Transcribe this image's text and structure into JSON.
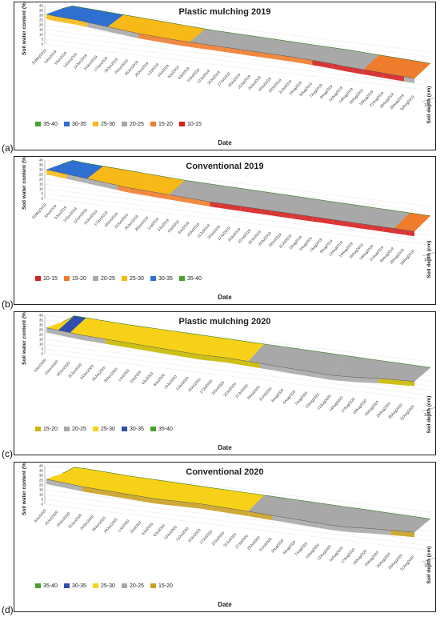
{
  "figure": {
    "labels": [
      "(a)",
      "(b)",
      "(c)",
      "(d)"
    ]
  },
  "chart_data": [
    {
      "type": "area",
      "title": "Plastic mulching 2019",
      "xlabel": "Date",
      "ylabel": "Soil water content (%)",
      "zlabel": "Soil depth (cm)",
      "z_ticks": [
        "10",
        "30"
      ],
      "ylim": [
        0,
        40
      ],
      "y_ticks": [
        "0",
        "5",
        "10",
        "15",
        "20",
        "25",
        "30",
        "35",
        "40"
      ],
      "x": [
        "31May2019",
        "3Jun2019",
        "5Jun2019",
        "10Jun2019",
        "12Jun2019",
        "14Jun2019",
        "17Jun2019",
        "19Jun2019",
        "24Jun2019",
        "26Jun2019",
        "28Jun2019",
        "1Jul2019",
        "3Jul2019",
        "5Jul2019",
        "8Jul2019",
        "10Jul2019",
        "12Jul2019",
        "15Jul2019",
        "17Jul2019",
        "19Jul2019",
        "22Jul2019",
        "24Jul2019",
        "26Jul2019",
        "29Jul2019",
        "31Jul2019",
        "2Aug2019",
        "5Aug2019",
        "7Aug2019",
        "9Aug2019",
        "12Aug2019",
        "14Aug2019",
        "16Aug2019",
        "19Aug2019",
        "21Aug2019",
        "26Aug2019",
        "28Aug2019",
        "30Aug2019"
      ],
      "series": [
        {
          "name": "10 cm",
          "values": [
            32,
            36,
            35.5,
            35,
            34.5,
            34,
            33.5,
            33,
            32.5,
            32,
            31.5,
            31,
            30.5,
            30,
            29.5,
            29,
            28.8,
            28.6,
            28.4,
            28.2,
            28,
            27.8,
            27.6,
            27.4,
            27.2,
            27,
            26.8,
            26.6,
            26.4,
            26,
            25.6,
            25.2,
            24.8,
            24.4,
            24,
            23.6,
            23
          ]
        },
        {
          "name": "30 cm",
          "values": [
            31,
            30,
            29.5,
            29,
            28,
            27,
            26,
            25,
            24,
            23,
            22.5,
            22,
            21.5,
            21,
            20.8,
            20.6,
            20.4,
            20.2,
            20,
            19.8,
            19.6,
            19.4,
            19.2,
            19,
            18.8,
            18.5,
            18,
            17.5,
            17,
            16,
            15.5,
            15,
            14.5,
            14,
            13.5,
            13,
            12.5
          ]
        }
      ],
      "legend": [
        "35-40",
        "30-35",
        "25-30",
        "20-25",
        "15-20",
        "10-15"
      ],
      "legend_colors": [
        "#4aa02c",
        "#2e6fd0",
        "#f7b917",
        "#a8a8a8",
        "#ee7c2c",
        "#d62020"
      ],
      "legend_position": "bottom"
    },
    {
      "type": "area",
      "title": "Conventional 2019",
      "xlabel": "Date",
      "ylabel": "Soil water content (%)",
      "zlabel": "Soil depth (cm)",
      "z_ticks": [
        "10",
        "30"
      ],
      "ylim": [
        0,
        40
      ],
      "y_ticks": [
        "0",
        "5",
        "10",
        "15",
        "20",
        "25",
        "30",
        "35",
        "40"
      ],
      "x": [
        "31May2019",
        "3Jun2019",
        "5Jun2019",
        "10Jun2019",
        "12Jun2019",
        "14Jun2019",
        "17Jun2019",
        "19Jun2019",
        "24Jun2019",
        "26Jun2019",
        "28Jun2019",
        "1Jul2019",
        "3Jul2019",
        "5Jul2019",
        "8Jul2019",
        "10Jul2019",
        "12Jul2019",
        "15Jul2019",
        "17Jul2019",
        "19Jul2019",
        "22Jul2019",
        "24Jul2019",
        "26Jul2019",
        "29Jul2019",
        "31Jul2019",
        "2Aug2019",
        "5Aug2019",
        "7Aug2019",
        "9Aug2019",
        "12Aug2019",
        "14Aug2019",
        "16Aug2019",
        "19Aug2019",
        "21Aug2019",
        "26Aug2019",
        "28Aug2019",
        "30Aug2019"
      ],
      "series": [
        {
          "name": "10 cm",
          "values": [
            31,
            36,
            35,
            34.5,
            34,
            33.5,
            33,
            32.5,
            32,
            31.5,
            31,
            30.5,
            30,
            29.8,
            29.6,
            29.4,
            29.2,
            29,
            28.8,
            28.6,
            28.4,
            28.2,
            28,
            27.8,
            27.6,
            27.4,
            27.2,
            27,
            26.8,
            26.6,
            26.4,
            26.2,
            26,
            25.8,
            25.6,
            25.4,
            25.2
          ]
        },
        {
          "name": "30 cm",
          "values": [
            30,
            29,
            28,
            27,
            26,
            25,
            24,
            23,
            22,
            21.5,
            21,
            20.5,
            20,
            19.5,
            19,
            18.5,
            18,
            17.8,
            17.6,
            17.4,
            17.2,
            17,
            16.8,
            16.6,
            16.4,
            16.2,
            16,
            15.8,
            15.6,
            15.4,
            15.2,
            15,
            14.8,
            14.6,
            14.4,
            14.2,
            14
          ]
        }
      ],
      "legend": [
        "10-15",
        "15-20",
        "20-25",
        "25-30",
        "30-35",
        "35-40"
      ],
      "legend_colors": [
        "#d62020",
        "#ee7c2c",
        "#a8a8a8",
        "#f7b917",
        "#2e6fd0",
        "#4aa02c"
      ],
      "legend_position": "bottom"
    },
    {
      "type": "area",
      "title": "Plastic mulching 2020",
      "xlabel": "Date",
      "ylabel": "Soil water content (%)",
      "zlabel": "Soil depth (cm)",
      "z_ticks": [
        "10",
        "30"
      ],
      "ylim": [
        0,
        40
      ],
      "y_ticks": [
        "0",
        "5",
        "10",
        "15",
        "20",
        "25",
        "30",
        "35",
        "40"
      ],
      "x": [
        "9Jun2020",
        "15Jun2020",
        "18Jun2020",
        "22Jun2020",
        "24Jun2020",
        "26Jun2020",
        "29Jun2020",
        "1Jul2020",
        "3Jul2020",
        "6Jul2020",
        "8Jul2020",
        "10Jul2020",
        "13Jul2020",
        "15Jul2020",
        "17Jul2020",
        "20Jul2020",
        "22Jul2020",
        "27Jul2020",
        "29Jul2020",
        "31Jul2020",
        "3Aug2020",
        "5Aug2020",
        "7Aug2020",
        "10Aug2020",
        "12Aug2020",
        "14Aug2020",
        "17Aug2020",
        "19Aug2020",
        "24Aug2020",
        "26Aug2020",
        "28Aug2020",
        "31Aug2020"
      ],
      "series": [
        {
          "name": "10 cm",
          "values": [
            28,
            36,
            35.5,
            35,
            34.5,
            34,
            33.8,
            33.6,
            33.4,
            33.2,
            33,
            32.8,
            32.6,
            32.4,
            32.2,
            32,
            31.8,
            31.6,
            31.4,
            31.2,
            31,
            30.8,
            30.6,
            30.4,
            30.2,
            30,
            29.8,
            29.6,
            29.4,
            29.2,
            29,
            28.8
          ]
        },
        {
          "name": "30 cm",
          "values": [
            27,
            26,
            25,
            24,
            23.5,
            23,
            22.5,
            22,
            21.5,
            21,
            20.5,
            20,
            19.5,
            19,
            19.2,
            19.4,
            19,
            18.5,
            18,
            17.5,
            17,
            16.5,
            16,
            15.5,
            15,
            15.5,
            16,
            17,
            18,
            18.5,
            19,
            19.5
          ]
        }
      ],
      "legend": [
        "15-20",
        "20-25",
        "25-30",
        "30-35",
        "35-40"
      ],
      "legend_colors": [
        "#c9b800",
        "#a8a8a8",
        "#f7d117",
        "#2e4fb0",
        "#4aa02c"
      ],
      "legend_position": "bottom"
    },
    {
      "type": "area",
      "title": "Conventional 2020",
      "xlabel": "Date",
      "ylabel": "Soil water content (%)",
      "zlabel": "Soil depth (cm)",
      "z_ticks": [
        "10",
        "30"
      ],
      "ylim": [
        0,
        40
      ],
      "y_ticks": [
        "0",
        "5",
        "10",
        "15",
        "20",
        "25",
        "30",
        "35",
        "40"
      ],
      "x": [
        "9Jun2020",
        "15Jun2020",
        "18Jun2020",
        "22Jun2020",
        "24Jun2020",
        "26Jun2020",
        "29Jun2020",
        "1Jul2020",
        "3Jul2020",
        "6Jul2020",
        "8Jul2020",
        "10Jul2020",
        "13Jul2020",
        "15Jul2020",
        "17Jul2020",
        "20Jul2020",
        "22Jul2020",
        "27Jul2020",
        "29Jul2020",
        "31Jul2020",
        "3Aug2020",
        "5Aug2020",
        "7Aug2020",
        "10Aug2020",
        "12Aug2020",
        "14Aug2020",
        "17Aug2020",
        "19Aug2020",
        "24Aug2020",
        "26Aug2020",
        "28Aug2020",
        "31Aug2020"
      ],
      "series": [
        {
          "name": "10 cm",
          "values": [
            27,
            35,
            35,
            34.5,
            34,
            33.5,
            33,
            32.8,
            32.6,
            32.4,
            32.2,
            32,
            31.8,
            31.6,
            31.4,
            31.2,
            31,
            30.8,
            30.6,
            30.4,
            30.2,
            30,
            29.8,
            29.6,
            29.4,
            29.2,
            29,
            28.8,
            28.6,
            28.4,
            28.2,
            28
          ]
        },
        {
          "name": "30 cm",
          "values": [
            26,
            25,
            24,
            23,
            22.5,
            22,
            21.5,
            21,
            20.5,
            20,
            20,
            20.2,
            20.4,
            20.6,
            20.2,
            19.8,
            19.4,
            19,
            18.5,
            18,
            17.5,
            17,
            16.5,
            16,
            15.5,
            15.5,
            16,
            17,
            17.5,
            18,
            18.5,
            19
          ]
        }
      ],
      "legend": [
        "35-40",
        "30-35",
        "25-30",
        "20-25",
        "15-20"
      ],
      "legend_colors": [
        "#4aa02c",
        "#2e4fb0",
        "#f7d117",
        "#a8a8a8",
        "#c9a020"
      ],
      "legend_position": "bottom"
    }
  ]
}
